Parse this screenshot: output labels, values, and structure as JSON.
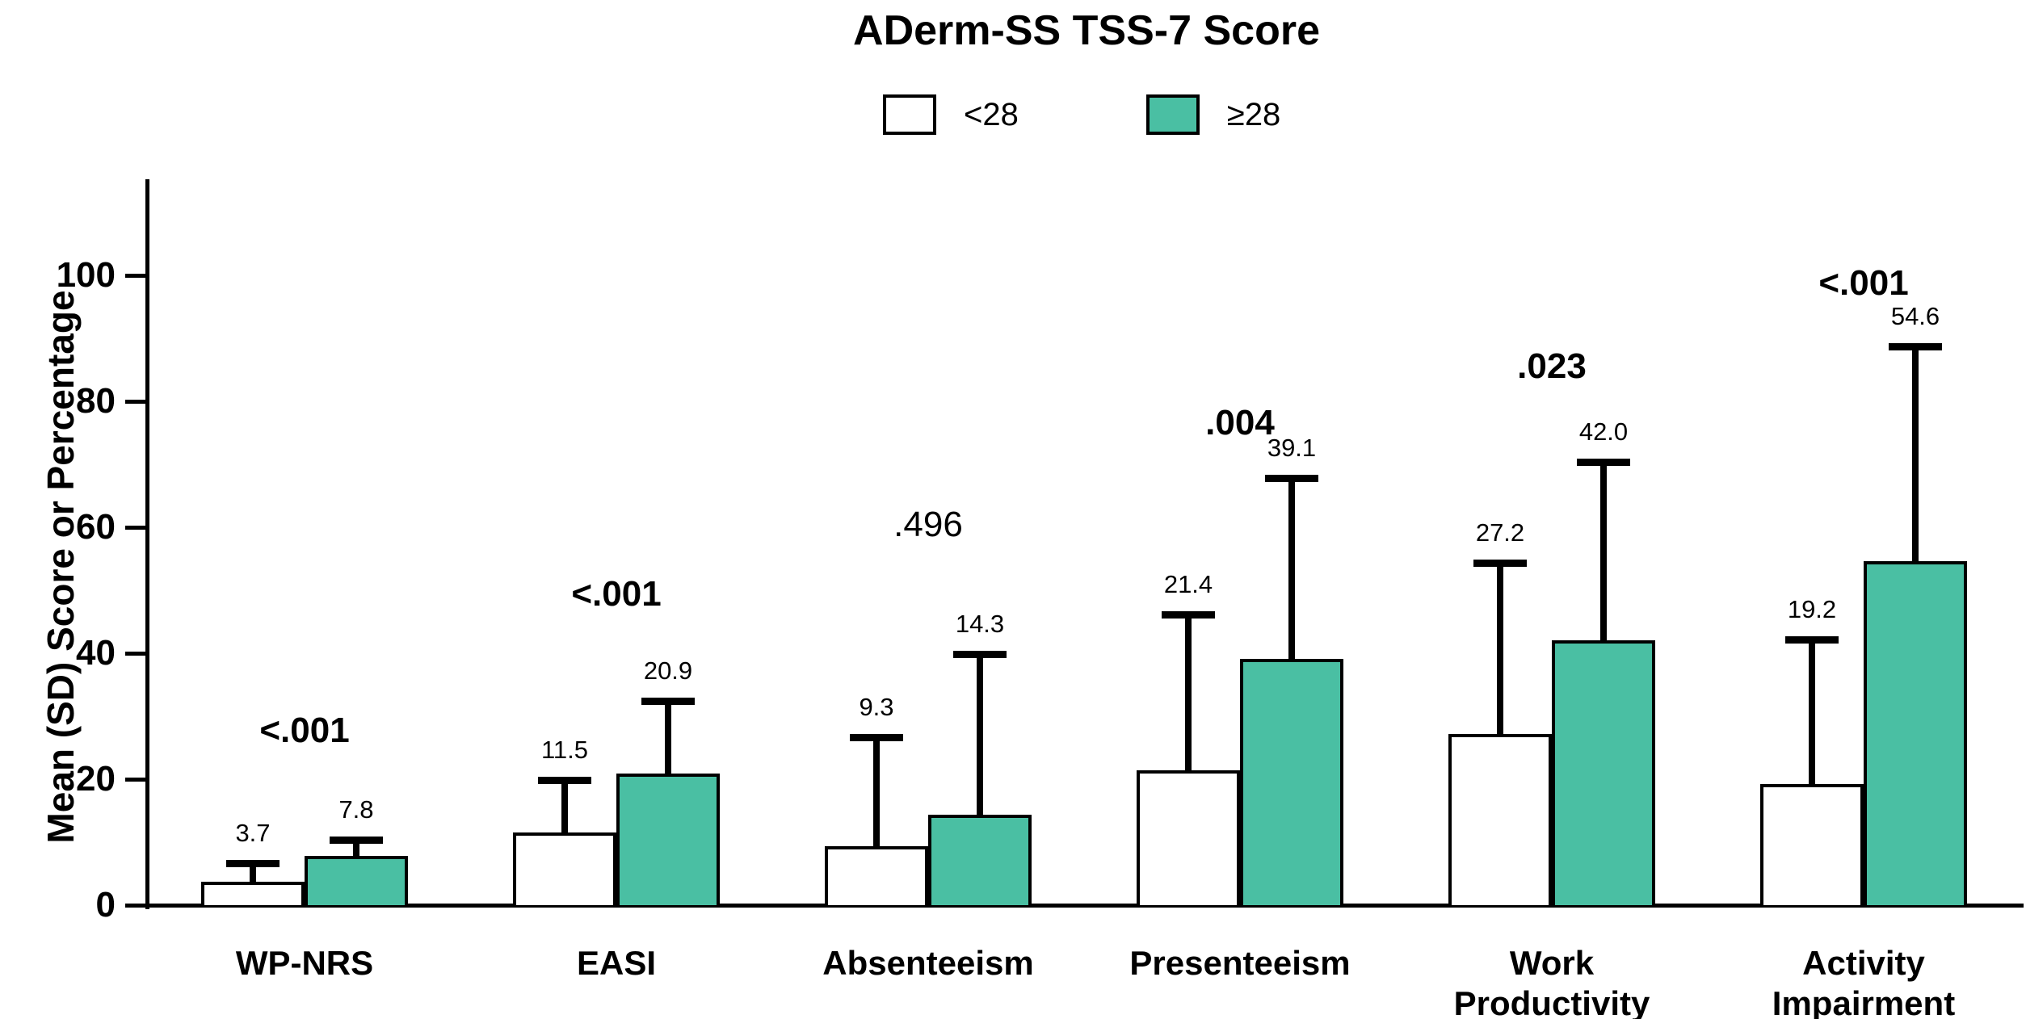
{
  "title": "ADerm-SS TSS-7 Score",
  "legend": {
    "items": [
      {
        "label": "<28",
        "color": "#FFFFFF"
      },
      {
        "label": "≥28",
        "color": "#4ABFA3"
      }
    ]
  },
  "colors": {
    "bar_low": "#FFFFFF",
    "bar_high": "#4ABFA3",
    "axis": "#000000"
  },
  "chart_data": {
    "type": "bar",
    "title": "ADerm-SS TSS-7 Score",
    "xlabel": "",
    "ylabel": "Mean (SD) Score or Percentage",
    "ylim": [
      0,
      115
    ],
    "yticks": [
      0,
      20,
      40,
      60,
      80,
      100
    ],
    "grid": false,
    "legend_position": "top",
    "error_bars": "upper SD whiskers with caps",
    "categories": [
      "WP-NRS",
      "EASI",
      "Absenteeism",
      "Presenteeism",
      "Work\nProductivity",
      "Activity\nImpairment"
    ],
    "series": [
      {
        "name": "<28",
        "color": "#FFFFFF",
        "values": [
          3.7,
          11.5,
          9.3,
          21.4,
          27.2,
          19.2
        ],
        "error_top": [
          6.3,
          19.5,
          26.3,
          45.8,
          54.0,
          41.8
        ]
      },
      {
        "name": "≥28",
        "color": "#4ABFA3",
        "values": [
          7.8,
          20.9,
          14.3,
          39.1,
          42.0,
          54.6
        ],
        "error_top": [
          10.0,
          32.0,
          39.5,
          67.5,
          70.0,
          88.3
        ]
      }
    ],
    "p_values": [
      {
        "label": "<.001",
        "y": 27.7,
        "bold": true
      },
      {
        "label": "<.001",
        "y": 49.4,
        "bold": true
      },
      {
        "label": ".496",
        "y": 60.4,
        "bold": false
      },
      {
        "label": ".004",
        "y": 76.5,
        "bold": true
      },
      {
        "label": ".023",
        "y": 85.5,
        "bold": true
      },
      {
        "label": "<.001",
        "y": 98.7,
        "bold": true
      }
    ]
  }
}
